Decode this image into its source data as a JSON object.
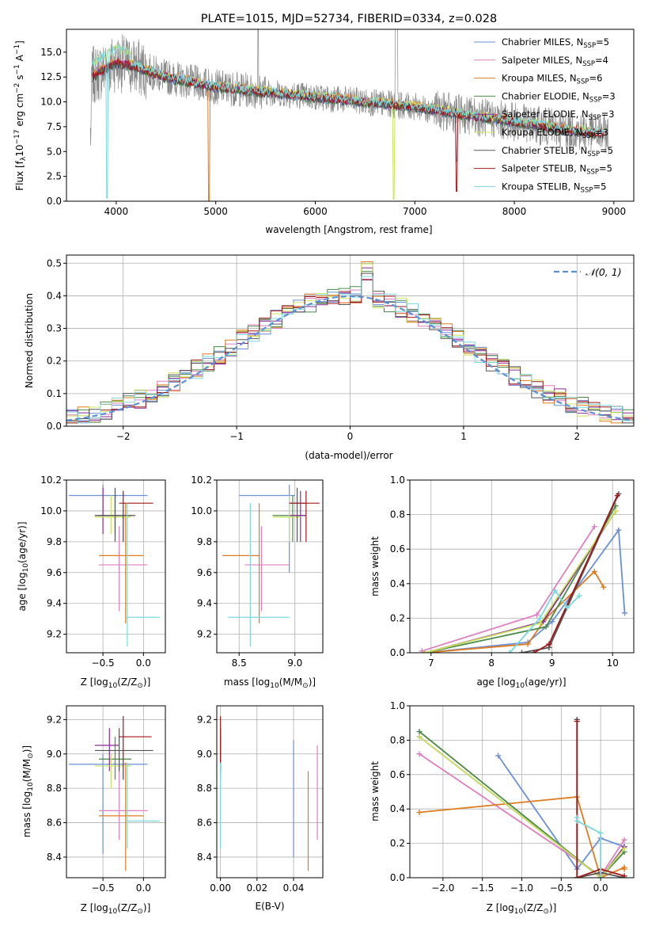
{
  "colors": {
    "chabrier_miles": "#6a8fdb",
    "salpeter_miles": "#e07fbf",
    "kroupa_miles": "#e07b1f",
    "chabrier_elodie": "#4a8a4a",
    "salpeter_elodie": "#8b2a9a",
    "kroupa_elodie": "#c8e65a",
    "chabrier_stelib": "#555555",
    "salpeter_stelib": "#a01818",
    "kroupa_stelib": "#7ad8dd",
    "normal": "#5b8fd6"
  },
  "chart_data": [
    {
      "id": "spectrum",
      "type": "line",
      "title": "PLATE=1015, MJD=52734, FIBERID=0334, z=0.028",
      "xlabel": "wavelength [Angstrom, rest frame]",
      "ylabel": "Flux [f",
      "ylabel_sub": "λ",
      "ylabel_rest": "10",
      "ylabel_sup1": "−17",
      "ylabel_rest2": " erg cm",
      "ylabel_sup2": "−2",
      "ylabel_rest3": " s",
      "ylabel_sup3": "−1",
      "ylabel_rest4": " A",
      "ylabel_sup4": "−1",
      "ylabel_rest5": "]",
      "xlim": [
        3500,
        9200
      ],
      "ylim": [
        0,
        17.3
      ],
      "xticks": [
        4000,
        5000,
        6000,
        7000,
        8000,
        9000
      ],
      "yticks": [
        0.0,
        2.5,
        5.0,
        7.5,
        10.0,
        12.5,
        15.0
      ],
      "continuum": [
        [
          3750,
          12.5
        ],
        [
          4000,
          14.0
        ],
        [
          4200,
          13.5
        ],
        [
          4500,
          12.5
        ],
        [
          5000,
          11.5
        ],
        [
          5500,
          11.0
        ],
        [
          6000,
          10.5
        ],
        [
          6500,
          10.0
        ],
        [
          7000,
          9.5
        ],
        [
          7500,
          8.7
        ],
        [
          8000,
          8.0
        ],
        [
          8500,
          7.2
        ],
        [
          8900,
          6.8
        ]
      ],
      "legend_placement": "top-right",
      "legend": [
        {
          "label": "Chabrier MILES, N",
          "sub": "SSP",
          "tail": "=5",
          "color_key": "chabrier_miles"
        },
        {
          "label": "Salpeter MILES, N",
          "sub": "SSP",
          "tail": "=4",
          "color_key": "salpeter_miles"
        },
        {
          "label": "Kroupa MILES, N",
          "sub": "SSP",
          "tail": "=6",
          "color_key": "kroupa_miles"
        },
        {
          "label": "Chabrier ELODIE, N",
          "sub": "SSP",
          "tail": "=3",
          "color_key": "chabrier_elodie"
        },
        {
          "label": "Salpeter ELODIE, N",
          "sub": "SSP",
          "tail": "=3",
          "color_key": "salpeter_elodie"
        },
        {
          "label": "Kroupa ELODIE, N",
          "sub": "SSP",
          "tail": "=3",
          "color_key": "kroupa_elodie"
        },
        {
          "label": "Chabrier STELIB, N",
          "sub": "SSP",
          "tail": "=5",
          "color_key": "chabrier_stelib"
        },
        {
          "label": "Salpeter STELIB, N",
          "sub": "SSP",
          "tail": "=5",
          "color_key": "salpeter_stelib"
        },
        {
          "label": "Kroupa STELIB, N",
          "sub": "SSP",
          "tail": "=5",
          "color_key": "kroupa_stelib"
        }
      ]
    },
    {
      "id": "residuals",
      "type": "histogram",
      "xlabel": "(data-model)/error",
      "ylabel": "Normed distribution",
      "xlim": [
        -2.5,
        2.5
      ],
      "ylim": [
        0,
        0.525
      ],
      "xticks": [
        -2,
        -1,
        0,
        1,
        2
      ],
      "yticks": [
        0.0,
        0.1,
        0.2,
        0.3,
        0.4,
        0.5
      ],
      "grid": true,
      "legend_placement": "top-right",
      "legend": [
        {
          "label": "𝒩(0, 1)",
          "color_key": "normal",
          "style": "dashed"
        }
      ]
    },
    {
      "id": "age_vs_z",
      "type": "errorbar",
      "xlabel": "Z [log",
      "xlabel_sub": "10",
      "xlabel_rest": "(Z/Z",
      "xlabel_sub2": "⊙",
      "xlabel_rest2": ")]",
      "ylabel": "age  [log",
      "ylabel_sub": "10",
      "ylabel_rest": "(age/yr)]",
      "xlim": [
        -0.95,
        0.27
      ],
      "ylim": [
        9.08,
        10.2
      ],
      "xticks": [
        -0.5,
        0.0
      ],
      "yticks": [
        9.2,
        9.4,
        9.6,
        9.8,
        10.0,
        10.2
      ],
      "points": [
        {
          "k": "chabrier_miles",
          "x": -0.5,
          "xe": [
            -0.92,
            0.05
          ],
          "y": 10.1,
          "ye": [
            9.95,
            10.17
          ]
        },
        {
          "k": "salpeter_miles",
          "x": -0.3,
          "xe": [
            -0.55,
            0.05
          ],
          "y": 9.65,
          "ye": [
            9.35,
            9.9
          ]
        },
        {
          "k": "kroupa_miles",
          "x": -0.22,
          "xe": [
            -0.55,
            0.0
          ],
          "y": 9.71,
          "ye": [
            9.27,
            10.05
          ]
        },
        {
          "k": "chabrier_elodie",
          "x": -0.35,
          "xe": [
            -0.55,
            -0.15
          ],
          "y": 9.97,
          "ye": [
            9.85,
            10.1
          ]
        },
        {
          "k": "salpeter_elodie",
          "x": -0.5,
          "xe": [
            -0.6,
            -0.3
          ],
          "y": 9.97,
          "ye": [
            9.85,
            10.15
          ]
        },
        {
          "k": "kroupa_elodie",
          "x": -0.4,
          "xe": [
            -0.6,
            -0.15
          ],
          "y": 9.96,
          "ye": [
            9.85,
            10.1
          ]
        },
        {
          "k": "chabrier_stelib",
          "x": -0.35,
          "xe": [
            -0.6,
            -0.1
          ],
          "y": 9.97,
          "ye": [
            9.8,
            10.15
          ]
        },
        {
          "k": "salpeter_stelib",
          "x": -0.25,
          "xe": [
            -0.3,
            0.12
          ],
          "y": 10.05,
          "ye": [
            9.8,
            10.13
          ]
        },
        {
          "k": "kroupa_stelib",
          "x": -0.2,
          "xe": [
            -0.22,
            0.2
          ],
          "y": 9.31,
          "ye": [
            9.12,
            10.05
          ]
        }
      ]
    },
    {
      "id": "age_vs_mass",
      "type": "errorbar",
      "xlabel": "mass [log",
      "xlabel_sub": "10",
      "xlabel_rest": "(M/M",
      "xlabel_sub2": "⊙",
      "xlabel_rest2": ")]",
      "xlim": [
        8.3,
        9.25
      ],
      "ylim": [
        9.08,
        10.2
      ],
      "xticks": [
        8.5,
        9.0
      ],
      "yticks": [
        9.2,
        9.4,
        9.6,
        9.8,
        10.0,
        10.2
      ],
      "points": [
        {
          "k": "chabrier_miles",
          "x": 8.95,
          "xe": [
            8.5,
            9.0
          ],
          "y": 10.1,
          "ye": [
            9.6,
            10.17
          ]
        },
        {
          "k": "salpeter_miles",
          "x": 8.7,
          "xe": [
            8.55,
            8.95
          ],
          "y": 9.65,
          "ye": [
            9.35,
            9.9
          ]
        },
        {
          "k": "kroupa_miles",
          "x": 8.68,
          "xe": [
            8.35,
            8.68
          ],
          "y": 9.71,
          "ye": [
            9.27,
            10.05
          ]
        },
        {
          "k": "chabrier_elodie",
          "x": 8.98,
          "xe": [
            8.8,
            9.1
          ],
          "y": 9.97,
          "ye": [
            9.8,
            10.1
          ]
        },
        {
          "k": "salpeter_elodie",
          "x": 9.05,
          "xe": [
            8.95,
            9.1
          ],
          "y": 9.97,
          "ye": [
            9.8,
            10.13
          ]
        },
        {
          "k": "kroupa_elodie",
          "x": 8.95,
          "xe": [
            8.8,
            9.05
          ],
          "y": 9.96,
          "ye": [
            9.8,
            10.1
          ]
        },
        {
          "k": "chabrier_stelib",
          "x": 9.02,
          "xe": [
            8.95,
            9.1
          ],
          "y": 10.05,
          "ye": [
            9.8,
            10.15
          ]
        },
        {
          "k": "salpeter_stelib",
          "x": 9.1,
          "xe": [
            8.95,
            9.22
          ],
          "y": 10.05,
          "ye": [
            9.8,
            10.13
          ]
        },
        {
          "k": "kroupa_stelib",
          "x": 8.6,
          "xe": [
            8.4,
            8.95
          ],
          "y": 9.31,
          "ye": [
            9.12,
            10.05
          ]
        }
      ]
    },
    {
      "id": "mw_vs_age",
      "type": "line",
      "xlabel": "age  [log",
      "xlabel_sub": "10",
      "xlabel_rest": "(age/yr)]",
      "ylabel": "mass weight",
      "xlim": [
        6.65,
        10.35
      ],
      "ylim": [
        0,
        1.0
      ],
      "xticks": [
        7,
        8,
        9,
        10
      ],
      "yticks": [
        0.0,
        0.2,
        0.4,
        0.6,
        0.8,
        1.0
      ],
      "grid": true,
      "series": [
        {
          "k": "chabrier_miles",
          "x": [
            6.9,
            8.6,
            9.0,
            10.1,
            10.2
          ],
          "y": [
            0.0,
            0.06,
            0.18,
            0.71,
            0.23
          ]
        },
        {
          "k": "salpeter_miles",
          "x": [
            6.85,
            8.75,
            9.7
          ],
          "y": [
            0.01,
            0.22,
            0.73
          ]
        },
        {
          "k": "kroupa_miles",
          "x": [
            6.9,
            8.6,
            8.9,
            9.7,
            9.85
          ],
          "y": [
            0.0,
            0.05,
            0.2,
            0.47,
            0.38
          ]
        },
        {
          "k": "chabrier_elodie",
          "x": [
            6.9,
            8.9,
            10.05
          ],
          "y": [
            0.0,
            0.15,
            0.85
          ]
        },
        {
          "k": "salpeter_elodie",
          "x": [
            6.9,
            8.85,
            10.05
          ],
          "y": [
            0.0,
            0.18,
            0.82
          ]
        },
        {
          "k": "kroupa_elodie",
          "x": [
            6.9,
            8.8,
            10.05
          ],
          "y": [
            0.0,
            0.17,
            0.82
          ]
        },
        {
          "k": "chabrier_stelib",
          "x": [
            8.5,
            8.95,
            10.1
          ],
          "y": [
            0.0,
            0.03,
            0.92
          ]
        },
        {
          "k": "salpeter_stelib",
          "x": [
            8.7,
            8.95,
            10.08
          ],
          "y": [
            0.0,
            0.05,
            0.91
          ]
        },
        {
          "k": "kroupa_stelib",
          "x": [
            8.3,
            8.8,
            9.05,
            9.25,
            9.45
          ],
          "y": [
            0.0,
            0.2,
            0.36,
            0.26,
            0.33
          ]
        }
      ]
    },
    {
      "id": "mass_vs_z",
      "type": "errorbar",
      "xlabel": "Z [log",
      "xlabel_sub": "10",
      "xlabel_rest": "(Z/Z",
      "xlabel_sub2": "⊙",
      "xlabel_rest2": ")]",
      "ylabel": "mass [log",
      "ylabel_sub": "10",
      "ylabel_rest": "(M/M",
      "ylabel_sub2": "⊙",
      "ylabel_rest2": ")]",
      "xlim": [
        -0.95,
        0.27
      ],
      "ylim": [
        8.28,
        9.28
      ],
      "xticks": [
        -0.5,
        0.0
      ],
      "yticks": [
        8.4,
        8.6,
        8.8,
        9.0,
        9.2
      ],
      "points": [
        {
          "k": "chabrier_miles",
          "x": -0.5,
          "xe": [
            -0.92,
            0.05
          ],
          "y": 8.94,
          "ye": [
            8.42,
            9.0
          ]
        },
        {
          "k": "salpeter_miles",
          "x": -0.3,
          "xe": [
            -0.55,
            0.05
          ],
          "y": 8.67,
          "ye": [
            8.5,
            8.98
          ]
        },
        {
          "k": "kroupa_miles",
          "x": -0.22,
          "xe": [
            -0.55,
            0.0
          ],
          "y": 8.64,
          "ye": [
            8.32,
            8.95
          ]
        },
        {
          "k": "chabrier_elodie",
          "x": -0.35,
          "xe": [
            -0.55,
            -0.15
          ],
          "y": 8.97,
          "ye": [
            8.85,
            9.1
          ]
        },
        {
          "k": "salpeter_elodie",
          "x": -0.42,
          "xe": [
            -0.6,
            -0.3
          ],
          "y": 9.05,
          "ye": [
            8.9,
            9.15
          ]
        },
        {
          "k": "kroupa_elodie",
          "x": -0.4,
          "xe": [
            -0.6,
            -0.15
          ],
          "y": 8.93,
          "ye": [
            8.8,
            9.0
          ]
        },
        {
          "k": "chabrier_stelib",
          "x": -0.3,
          "xe": [
            -0.6,
            0.12
          ],
          "y": 9.02,
          "ye": [
            8.9,
            9.15
          ]
        },
        {
          "k": "salpeter_stelib",
          "x": -0.25,
          "xe": [
            -0.3,
            0.1
          ],
          "y": 9.1,
          "ye": [
            8.85,
            9.22
          ]
        },
        {
          "k": "kroupa_stelib",
          "x": -0.2,
          "xe": [
            -0.22,
            0.2
          ],
          "y": 8.61,
          "ye": [
            8.45,
            8.95
          ]
        }
      ]
    },
    {
      "id": "mass_vs_ebv",
      "type": "errorbar",
      "xlabel": "E(B-V)",
      "xlim": [
        -0.002,
        0.056
      ],
      "ylim": [
        8.28,
        9.28
      ],
      "xticks": [
        0.0,
        0.02,
        0.04
      ],
      "xticklabels": [
        "0.00",
        "0.02",
        "0.04"
      ],
      "yticks": [
        8.4,
        8.6,
        8.8,
        9.0,
        9.2
      ],
      "points": [
        {
          "k": "chabrier_miles",
          "x": 0.04,
          "y": 8.8,
          "ye": [
            8.4,
            9.08
          ]
        },
        {
          "k": "salpeter_miles",
          "x": 0.053,
          "y": 8.75,
          "ye": [
            8.5,
            9.05
          ]
        },
        {
          "k": "kroupa_miles",
          "x": 0.048,
          "y": 8.6,
          "ye": [
            8.32,
            8.9
          ]
        },
        {
          "k": "chabrier_elodie",
          "x": 0.0,
          "y": 8.97,
          "ye": [
            8.85,
            9.1
          ]
        },
        {
          "k": "salpeter_elodie",
          "x": 0.0,
          "y": 9.05,
          "ye": [
            8.9,
            9.15
          ]
        },
        {
          "k": "kroupa_elodie",
          "x": 0.0,
          "y": 8.93,
          "ye": [
            8.8,
            9.0
          ]
        },
        {
          "k": "chabrier_stelib",
          "x": 0.0,
          "y": 9.02,
          "ye": [
            8.9,
            9.15
          ]
        },
        {
          "k": "salpeter_stelib",
          "x": 0.0,
          "y": 9.1,
          "ye": [
            8.95,
            9.22
          ]
        },
        {
          "k": "kroupa_stelib",
          "x": 0.0,
          "y": 8.61,
          "ye": [
            8.45,
            8.95
          ]
        }
      ]
    },
    {
      "id": "mw_vs_z",
      "type": "line",
      "xlabel": "Z [log",
      "xlabel_sub": "10",
      "xlabel_rest": "(Z/Z",
      "xlabel_sub2": "⊙",
      "xlabel_rest2": ")]",
      "ylabel": "mass weight",
      "xlim": [
        -2.42,
        0.42
      ],
      "ylim": [
        0,
        1.0
      ],
      "xticks": [
        -2.0,
        -1.5,
        -1.0,
        -0.5,
        0.0
      ],
      "xticklabels": [
        "−2.0",
        "−1.5",
        "−1.0",
        "−0.5",
        "0.0"
      ],
      "yticks": [
        0.0,
        0.2,
        0.4,
        0.6,
        0.8,
        1.0
      ],
      "grid": true,
      "series": [
        {
          "k": "chabrier_miles",
          "x": [
            -1.3,
            -0.3,
            0.0,
            0.3
          ],
          "y": [
            0.71,
            0.05,
            0.23,
            0.18
          ]
        },
        {
          "k": "salpeter_miles",
          "x": [
            -2.3,
            0.0,
            0.3
          ],
          "y": [
            0.72,
            0.01,
            0.22
          ]
        },
        {
          "k": "kroupa_miles",
          "x": [
            -2.3,
            -0.3,
            0.0,
            0.3,
            0.3
          ],
          "y": [
            0.38,
            0.47,
            0.0,
            0.06,
            0.05
          ]
        },
        {
          "k": "chabrier_elodie",
          "x": [
            -2.3,
            0.0,
            0.3
          ],
          "y": [
            0.85,
            0.0,
            0.15
          ]
        },
        {
          "k": "salpeter_elodie",
          "x": [
            -2.3,
            0.0,
            0.3
          ],
          "y": [
            0.82,
            0.0,
            0.18
          ]
        },
        {
          "k": "kroupa_elodie",
          "x": [
            -2.3,
            0.0,
            0.3
          ],
          "y": [
            0.82,
            0.0,
            0.17
          ]
        },
        {
          "k": "chabrier_stelib",
          "x": [
            -0.3,
            -0.3,
            0.0,
            0.3
          ],
          "y": [
            0.92,
            0.0,
            0.03,
            0.0
          ]
        },
        {
          "k": "salpeter_stelib",
          "x": [
            -0.3,
            -0.3,
            0.0,
            0.3
          ],
          "y": [
            0.91,
            0.0,
            0.05,
            0.01
          ]
        },
        {
          "k": "kroupa_stelib",
          "x": [
            -0.3,
            -0.3,
            0.0,
            0.0
          ],
          "y": [
            0.35,
            0.33,
            0.26,
            0.0
          ]
        }
      ]
    }
  ]
}
